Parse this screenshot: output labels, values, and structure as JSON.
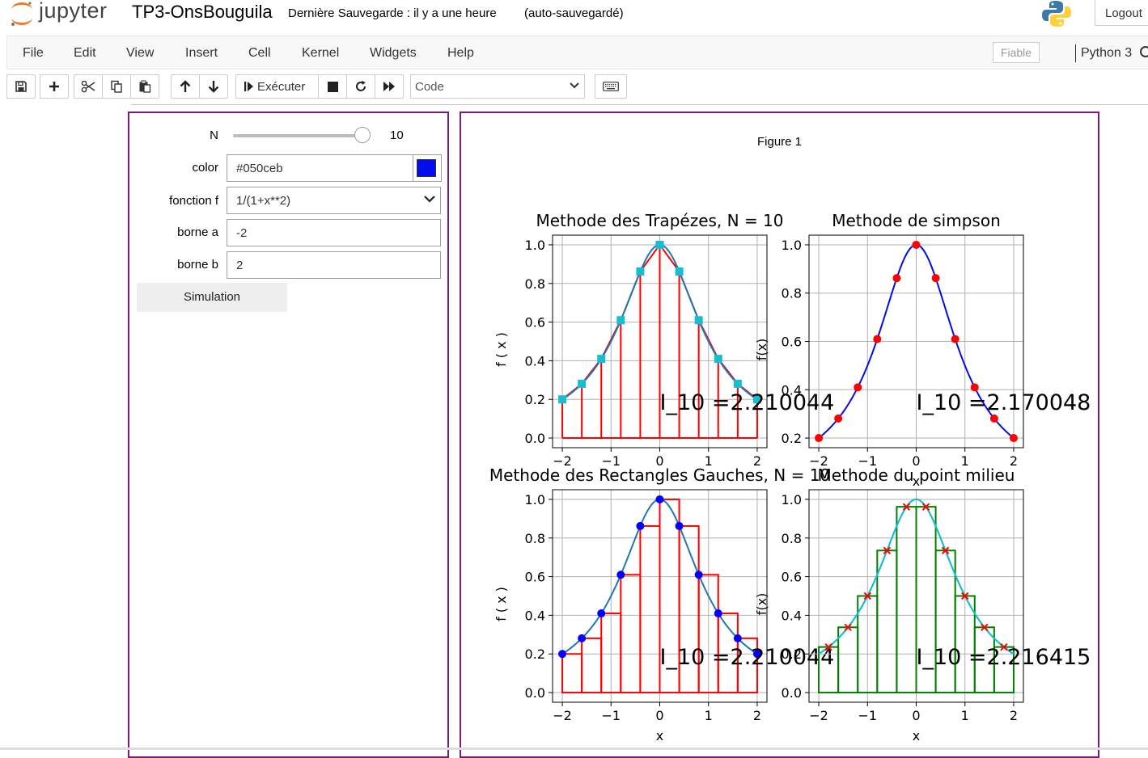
{
  "header": {
    "logo_text": "jupyter",
    "notebook_title": "TP3-OnsBouguila",
    "save_status": "Dernière Sauvegarde : il y a une heure",
    "autosave": "(auto-sauvegardé)",
    "logout_label": "Logout"
  },
  "menubar": {
    "items": [
      "File",
      "Edit",
      "View",
      "Insert",
      "Cell",
      "Kernel",
      "Widgets",
      "Help"
    ],
    "trusted_label": "Fiable",
    "kernel_name": "Python 3"
  },
  "toolbar": {
    "run_label": "Exécuter",
    "cell_type": "Code",
    "icons": [
      "save-icon",
      "plus-icon",
      "cut-icon",
      "copy-icon",
      "paste-icon",
      "arrow-up-icon",
      "arrow-down-icon",
      "run-icon",
      "stop-icon",
      "restart-icon",
      "fast-forward-icon",
      "keyboard-icon"
    ]
  },
  "widgets": {
    "n_label": "N",
    "n_value": 10,
    "n_min": 1,
    "n_max": 10,
    "n_readout": "10",
    "color_label": "color",
    "color_value": "#050ceb",
    "function_label": "fonction f",
    "function_value": "1/(1+x**2)",
    "borne_a_label": "borne a",
    "borne_a_value": "-2",
    "borne_b_label": "borne b",
    "borne_b_value": "2",
    "simulate_label": "Simulation"
  },
  "figure": {
    "title": "Figure 1",
    "colors": {
      "curve": "#1f77b4",
      "red": "#ff0000",
      "cyan": "#17becf",
      "blue_marker": "#0000ff",
      "simpson_curve": "#050ceb",
      "green": "#008000",
      "grid": "#b0b0b0"
    }
  },
  "chart_data": [
    {
      "type": "line",
      "title": "Methode des Trapézes, N = 10",
      "xlabel": "",
      "ylabel": "f ( x )",
      "xlim": [
        -2.2,
        2.2
      ],
      "ylim": [
        -0.05,
        1.05
      ],
      "xticks": [
        "−2",
        "−1",
        "0",
        "1",
        "2"
      ],
      "yticks": [
        "0.0",
        "0.2",
        "0.4",
        "0.6",
        "0.8",
        "1.0"
      ],
      "grid": true,
      "function": "1/(1+x**2)",
      "a": -2,
      "b": 2,
      "n": 10,
      "markers": "square",
      "annotation": "I_10 =2.210044"
    },
    {
      "type": "line",
      "title": "Methode de simpson",
      "xlabel": "x",
      "ylabel": "f(x)",
      "xlim": [
        -2.2,
        2.2
      ],
      "ylim": [
        0.16,
        1.04
      ],
      "xticks": [
        "−2",
        "−1",
        "0",
        "1",
        "2"
      ],
      "yticks": [
        "0.2",
        "0.4",
        "0.6",
        "0.8",
        "1.0"
      ],
      "grid": true,
      "function": "1/(1+x**2)",
      "a": -2,
      "b": 2,
      "n": 10,
      "markers": "circle",
      "annotation": "I_10 =2.170048"
    },
    {
      "type": "line",
      "title": "Methode des Rectangles Gauches, N = 10",
      "xlabel": "x",
      "ylabel": "f ( x )",
      "xlim": [
        -2.2,
        2.2
      ],
      "ylim": [
        -0.05,
        1.05
      ],
      "xticks": [
        "−2",
        "−1",
        "0",
        "1",
        "2"
      ],
      "yticks": [
        "0.0",
        "0.2",
        "0.4",
        "0.6",
        "0.8",
        "1.0"
      ],
      "grid": true,
      "function": "1/(1+x**2)",
      "a": -2,
      "b": 2,
      "n": 10,
      "markers": "circle",
      "annotation": "I_10 =2.210044"
    },
    {
      "type": "line",
      "title": "Methode du point milieu",
      "xlabel": "x",
      "ylabel": "f(x)",
      "xlim": [
        -2.2,
        2.2
      ],
      "ylim": [
        -0.05,
        1.05
      ],
      "xticks": [
        "−2",
        "−1",
        "0",
        "1",
        "2"
      ],
      "yticks": [
        "0.0",
        "0.2",
        "0.4",
        "0.6",
        "0.8",
        "1.0"
      ],
      "grid": true,
      "function": "1/(1+x**2)",
      "a": -2,
      "b": 2,
      "n": 10,
      "markers": "x",
      "annotation": "I_10 =2.216415"
    }
  ]
}
